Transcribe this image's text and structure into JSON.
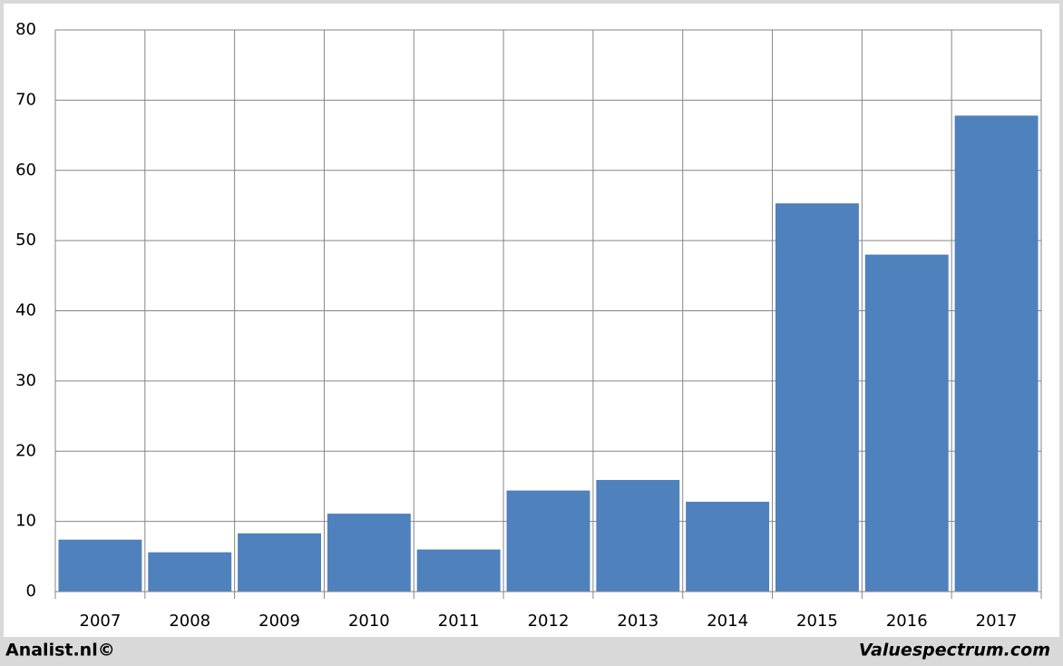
{
  "chart_data": {
    "type": "bar",
    "categories": [
      "2007",
      "2008",
      "2009",
      "2010",
      "2011",
      "2012",
      "2013",
      "2014",
      "2015",
      "2016",
      "2017"
    ],
    "values": [
      7.4,
      5.6,
      8.3,
      11.1,
      6.0,
      14.4,
      15.9,
      12.8,
      55.3,
      48.0,
      67.8
    ],
    "color": "#4f81bd",
    "ylim": [
      0,
      80
    ],
    "yticks": [
      0,
      10,
      20,
      30,
      40,
      50,
      60,
      70,
      80
    ],
    "grid": true,
    "credit_left": "Analist.nl©",
    "credit_right": "Valuespectrum.com"
  }
}
